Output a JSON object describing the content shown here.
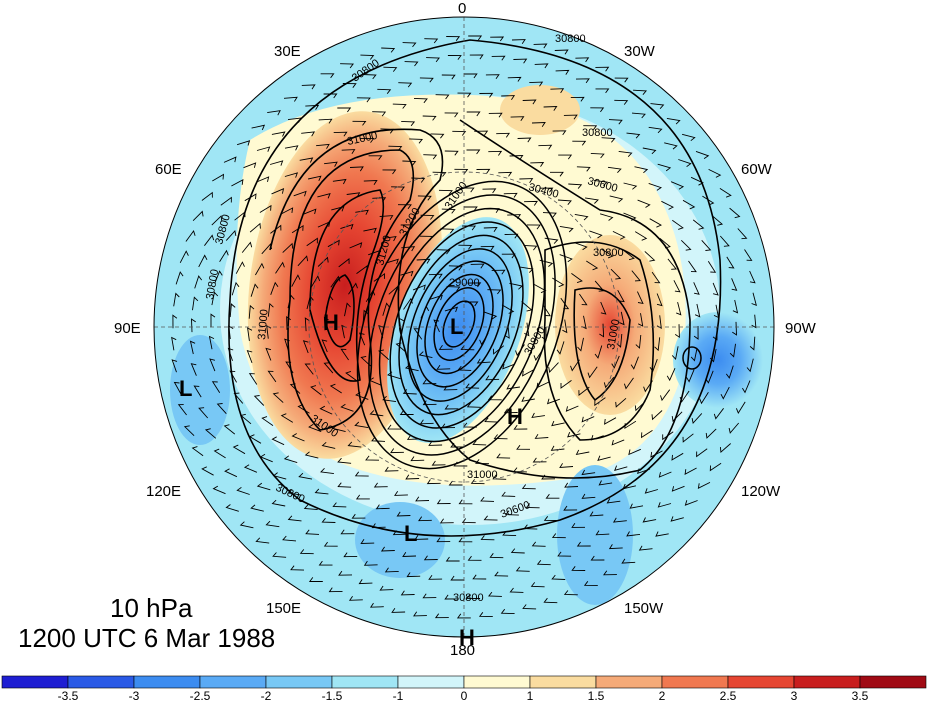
{
  "caption": {
    "level": "10 hPa",
    "time": "1200 UTC 6 Mar 1988"
  },
  "longitude_labels": [
    "0",
    "30W",
    "60W",
    "90W",
    "120W",
    "150W",
    "180",
    "150E",
    "120E",
    "90E",
    "60E",
    "30E"
  ],
  "pressure_centers": [
    {
      "label": "H",
      "lon": "90E side"
    },
    {
      "label": "L",
      "lon": "pole"
    },
    {
      "label": "H",
      "lon": "150W side"
    },
    {
      "label": "L",
      "lon": "100E outer"
    },
    {
      "label": "L",
      "lon": "170E outer"
    },
    {
      "label": "H",
      "lon": "180 edge"
    }
  ],
  "contour_labels": [
    "30800",
    "30800",
    "30800",
    "31000",
    "31200",
    "30800",
    "30800",
    "31000",
    "29000",
    "30400",
    "30600",
    "30800",
    "31000",
    "31000",
    "30800",
    "31000",
    "30800",
    "30600",
    "30800",
    "31200",
    "31000"
  ],
  "colorbar": {
    "ticks": [
      "-3.5",
      "-3",
      "-2.5",
      "-2",
      "-1.5",
      "-1",
      "0",
      "1",
      "1.5",
      "2",
      "2.5",
      "3",
      "3.5"
    ],
    "colors": [
      "#1e1ed2",
      "#2a5ae6",
      "#3c8cf0",
      "#5aaaf5",
      "#78c8f5",
      "#a0e6f5",
      "#d2f5fa",
      "#fffad2",
      "#fadca0",
      "#f5aa78",
      "#f07850",
      "#e64632",
      "#c81e1e",
      "#a00a14"
    ]
  }
}
